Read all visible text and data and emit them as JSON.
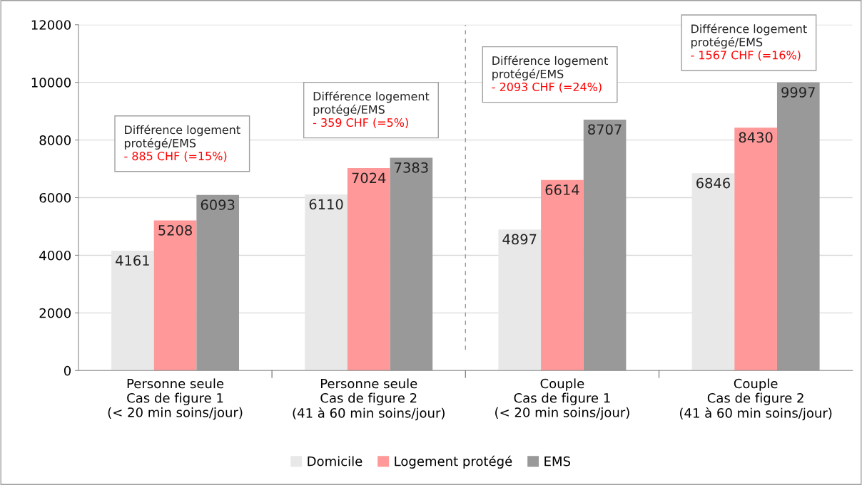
{
  "chart_data": {
    "type": "bar",
    "categories": [
      "Personne seule\nCas de figure 1\n(< 20 min soins/jour)",
      "Personne seule\nCas de figure 2\n(41 à 60 min soins/jour)",
      "Couple\nCas de figure 1\n(< 20 min soins/jour)",
      "Couple\nCas de figure 2\n(41 à 60 min soins/jour)"
    ],
    "series": [
      {
        "name": "Domicile",
        "color": "#e8e8e8",
        "values": [
          4161,
          6110,
          4897,
          6846
        ]
      },
      {
        "name": "Logement protégé",
        "color": "#ff9999",
        "values": [
          5208,
          7024,
          6614,
          8430
        ]
      },
      {
        "name": "EMS",
        "color": "#999999",
        "values": [
          6093,
          7383,
          8707,
          9997
        ]
      }
    ],
    "ylim": [
      0,
      12000
    ],
    "yticks": [
      0,
      2000,
      4000,
      6000,
      8000,
      10000,
      12000
    ],
    "grid": "y",
    "legend": "bottom",
    "data_labels": true,
    "annotations": [
      "Différence logement\nprotégé/EMS\n- 885 CHF (=15%)",
      "Différence logement\nprotégé/EMS\n- 359 CHF (=5%)",
      "Différence logement\nprotégé/EMS\n- 2093 CHF (=24%)",
      "Différence logement\nprotégé/EMS\n- 1567 CHF (=16%)"
    ]
  }
}
